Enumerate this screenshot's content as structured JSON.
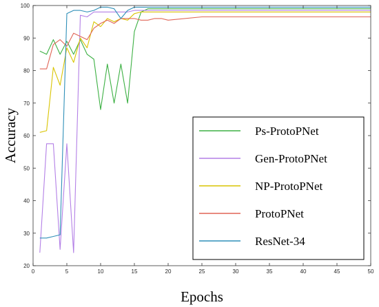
{
  "chart_data": {
    "type": "line",
    "title": "",
    "xlabel": "Epochs",
    "ylabel": "Accuracy",
    "xlim": [
      0,
      50
    ],
    "ylim": [
      20,
      100
    ],
    "xticks": [
      0,
      5,
      10,
      15,
      20,
      25,
      30,
      35,
      40,
      45,
      50
    ],
    "yticks": [
      20,
      30,
      40,
      50,
      60,
      70,
      80,
      90,
      100
    ],
    "grid": false,
    "legend_position": "lower-right",
    "series": [
      {
        "name": "Ps-ProtoPNet",
        "color": "#3cb043",
        "x": [
          1,
          2,
          3,
          4,
          5,
          6,
          7,
          8,
          9,
          10,
          11,
          12,
          13,
          14,
          15,
          16,
          17,
          18,
          19,
          20,
          25,
          30,
          35,
          40,
          45,
          50
        ],
        "y": [
          86,
          85,
          89.5,
          85,
          89,
          85,
          89.5,
          85,
          83.5,
          68,
          82,
          70,
          82,
          70,
          92,
          98,
          99,
          99,
          99,
          99,
          99,
          99,
          99,
          99,
          99,
          99
        ]
      },
      {
        "name": "Gen-ProtoPNet",
        "color": "#b37fe6",
        "x": [
          1,
          2,
          3,
          4,
          5,
          6,
          7,
          8,
          9,
          10,
          11,
          12,
          13,
          14,
          15,
          16,
          17,
          18,
          19,
          20,
          25,
          30,
          35,
          40,
          45,
          50
        ],
        "y": [
          24,
          57.5,
          57.5,
          25,
          57.5,
          24,
          97,
          96.5,
          98,
          98,
          98,
          98,
          98,
          98,
          98.5,
          98.5,
          98.5,
          98.5,
          98.5,
          98.5,
          98.5,
          98.5,
          98.5,
          98.5,
          98.5,
          98.5
        ]
      },
      {
        "name": "NP-ProtoPNet",
        "color": "#d9c400",
        "x": [
          1,
          2,
          3,
          4,
          5,
          6,
          7,
          8,
          9,
          10,
          11,
          12,
          13,
          14,
          15,
          16,
          17,
          18,
          19,
          20,
          25,
          30,
          35,
          40,
          45,
          50
        ],
        "y": [
          61,
          61.5,
          81,
          75.5,
          87,
          82.5,
          90,
          87,
          95,
          93.5,
          96,
          95,
          96,
          95.5,
          97.5,
          98,
          98,
          98,
          98,
          98,
          98,
          98,
          98,
          98,
          98,
          98
        ]
      },
      {
        "name": "ProtoPNet",
        "color": "#e06455",
        "x": [
          1,
          2,
          3,
          4,
          5,
          6,
          7,
          8,
          9,
          10,
          11,
          12,
          13,
          14,
          15,
          16,
          17,
          18,
          19,
          20,
          25,
          30,
          35,
          40,
          45,
          50
        ],
        "y": [
          80.5,
          80.5,
          88,
          89.5,
          87.5,
          91.5,
          90.5,
          89.5,
          93,
          94.5,
          95.5,
          94.5,
          96,
          96,
          96,
          95.5,
          95.5,
          96,
          96,
          95.5,
          96.5,
          96.5,
          96.5,
          96.5,
          96.5,
          96.5
        ]
      },
      {
        "name": "ResNet-34",
        "color": "#2e8fb8",
        "x": [
          1,
          2,
          3,
          4,
          5,
          6,
          7,
          8,
          9,
          10,
          11,
          12,
          13,
          14,
          15,
          16,
          17,
          18,
          19,
          20,
          25,
          30,
          35,
          40,
          45,
          50
        ],
        "y": [
          28.5,
          28.5,
          29,
          29.5,
          97.5,
          98.5,
          98.5,
          98,
          98.5,
          99.5,
          99.5,
          99,
          96,
          98.5,
          99.5,
          99.5,
          99.5,
          99.5,
          99.5,
          99.5,
          99.5,
          99.5,
          99.5,
          99.5,
          99.5,
          99.5
        ]
      }
    ]
  }
}
